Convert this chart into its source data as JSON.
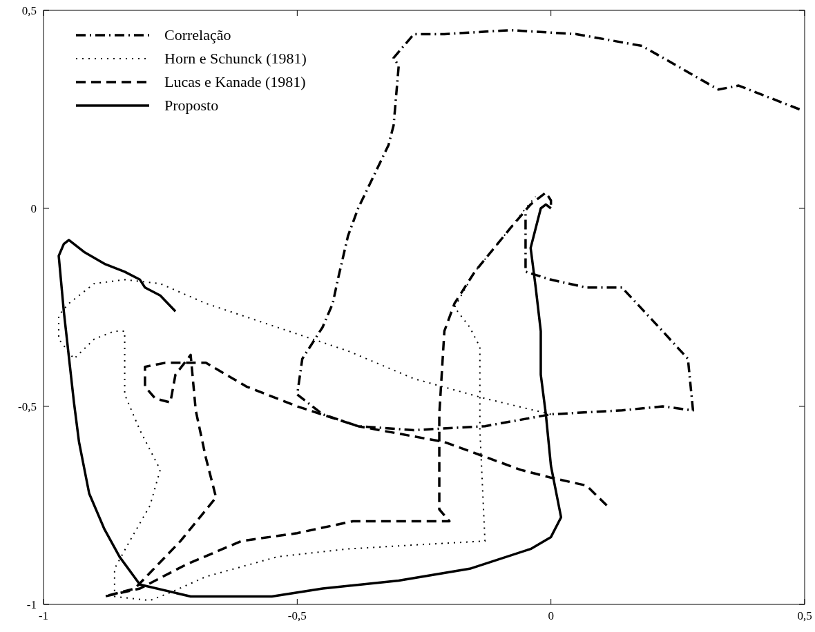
{
  "chart_data": {
    "type": "line",
    "xlim": [
      -1,
      0.5
    ],
    "ylim": [
      -1,
      0.5
    ],
    "xticks": [
      -1,
      {
        "value": -0.5,
        "label": "-0,5"
      },
      0,
      {
        "value": 0.5,
        "label": "0,5"
      }
    ],
    "yticks": [
      -1,
      {
        "value": -0.5,
        "label": "-0,5"
      },
      0,
      {
        "value": 0.5,
        "label": "0,5"
      }
    ],
    "grid": false,
    "legend": "top left",
    "marker": "none",
    "series": [
      {
        "name": "Correlação",
        "color": "#000000",
        "line_style": "dashdot",
        "x": [
          0.49,
          0.37,
          0.33,
          0.18,
          0.05,
          -0.08,
          -0.21,
          -0.27,
          -0.31,
          -0.3,
          -0.31,
          -0.32,
          -0.38,
          -0.4,
          -0.42,
          -0.43,
          -0.45,
          -0.49,
          -0.5,
          -0.45,
          -0.38,
          -0.27,
          -0.13,
          0.0,
          0.14,
          0.22,
          0.28,
          0.27,
          0.22,
          0.14,
          0.07,
          0.0,
          -0.05,
          -0.05,
          -0.05
        ],
        "values": [
          0.25,
          0.31,
          0.3,
          0.41,
          0.44,
          0.45,
          0.44,
          0.44,
          0.38,
          0.36,
          0.21,
          0.16,
          0.0,
          -0.07,
          -0.18,
          -0.24,
          -0.3,
          -0.38,
          -0.47,
          -0.52,
          -0.55,
          -0.56,
          -0.55,
          -0.52,
          -0.51,
          -0.5,
          -0.51,
          -0.38,
          -0.31,
          -0.2,
          -0.2,
          -0.18,
          -0.16,
          -0.11,
          -0.01
        ]
      },
      {
        "name": "Horn e Schunck (1981)",
        "color": "#000000",
        "line_style": "dotted",
        "x": [
          0.0,
          -0.13,
          -0.27,
          -0.4,
          -0.54,
          -0.68,
          -0.77,
          -0.84,
          -0.9,
          -0.95,
          -0.97,
          -0.97,
          -0.94,
          -0.9,
          -0.86,
          -0.84,
          -0.84,
          -0.81,
          -0.77,
          -0.79,
          -0.83,
          -0.86,
          -0.86,
          -0.79,
          -0.75,
          -0.68,
          -0.54,
          -0.4,
          -0.27,
          -0.13,
          -0.14,
          -0.14,
          -0.16,
          -0.19,
          -0.15,
          -0.08,
          -0.05,
          -0.03
        ],
        "values": [
          -0.52,
          -0.48,
          -0.43,
          -0.36,
          -0.3,
          -0.24,
          -0.19,
          -0.18,
          -0.19,
          -0.24,
          -0.27,
          -0.33,
          -0.38,
          -0.33,
          -0.31,
          -0.31,
          -0.47,
          -0.56,
          -0.66,
          -0.75,
          -0.84,
          -0.91,
          -0.98,
          -0.99,
          -0.97,
          -0.93,
          -0.88,
          -0.86,
          -0.85,
          -0.84,
          -0.56,
          -0.35,
          -0.3,
          -0.25,
          -0.16,
          -0.05,
          0.0,
          0.03
        ]
      },
      {
        "name": "Lucas e Kanade (1981)",
        "color": "#000000",
        "line_style": "dashed",
        "x": [
          0.11,
          0.07,
          0.0,
          -0.06,
          -0.21,
          -0.38,
          -0.5,
          -0.6,
          -0.68,
          -0.76,
          -0.8,
          -0.8,
          -0.78,
          -0.75,
          -0.74,
          -0.71,
          -0.7,
          -0.68,
          -0.66,
          -0.73,
          -0.82,
          -0.88,
          -0.81,
          -0.72,
          -0.61,
          -0.5,
          -0.39,
          -0.27,
          -0.2,
          -0.22,
          -0.22,
          -0.21,
          -0.19,
          -0.15,
          -0.08,
          -0.04,
          -0.01,
          0.0,
          0.0
        ],
        "values": [
          -0.75,
          -0.7,
          -0.68,
          -0.66,
          -0.59,
          -0.55,
          -0.5,
          -0.45,
          -0.39,
          -0.39,
          -0.4,
          -0.45,
          -0.48,
          -0.49,
          -0.42,
          -0.37,
          -0.51,
          -0.63,
          -0.73,
          -0.84,
          -0.96,
          -0.98,
          -0.96,
          -0.9,
          -0.84,
          -0.82,
          -0.79,
          -0.79,
          -0.79,
          -0.76,
          -0.52,
          -0.31,
          -0.24,
          -0.16,
          -0.05,
          0.01,
          0.04,
          0.02,
          0.0
        ]
      },
      {
        "name": "Proposto",
        "color": "#000000",
        "line_style": "solid",
        "x": [
          -0.74,
          -0.77,
          -0.8,
          -0.81,
          -0.84,
          -0.88,
          -0.92,
          -0.95,
          -0.96,
          -0.97,
          -0.96,
          -0.94,
          -0.93,
          -0.91,
          -0.88,
          -0.85,
          -0.81,
          -0.71,
          -0.55,
          -0.45,
          -0.3,
          -0.16,
          -0.04,
          0.0,
          0.02,
          0.0,
          -0.01,
          -0.02,
          -0.02,
          -0.03,
          -0.04,
          -0.02,
          -0.01,
          0.0
        ],
        "values": [
          -0.26,
          -0.22,
          -0.2,
          -0.18,
          -0.16,
          -0.14,
          -0.11,
          -0.08,
          -0.09,
          -0.12,
          -0.26,
          -0.49,
          -0.59,
          -0.72,
          -0.81,
          -0.88,
          -0.95,
          -0.98,
          -0.98,
          -0.96,
          -0.94,
          -0.91,
          -0.86,
          -0.83,
          -0.78,
          -0.65,
          -0.52,
          -0.42,
          -0.31,
          -0.2,
          -0.1,
          0.0,
          0.01,
          0.0
        ]
      }
    ]
  }
}
